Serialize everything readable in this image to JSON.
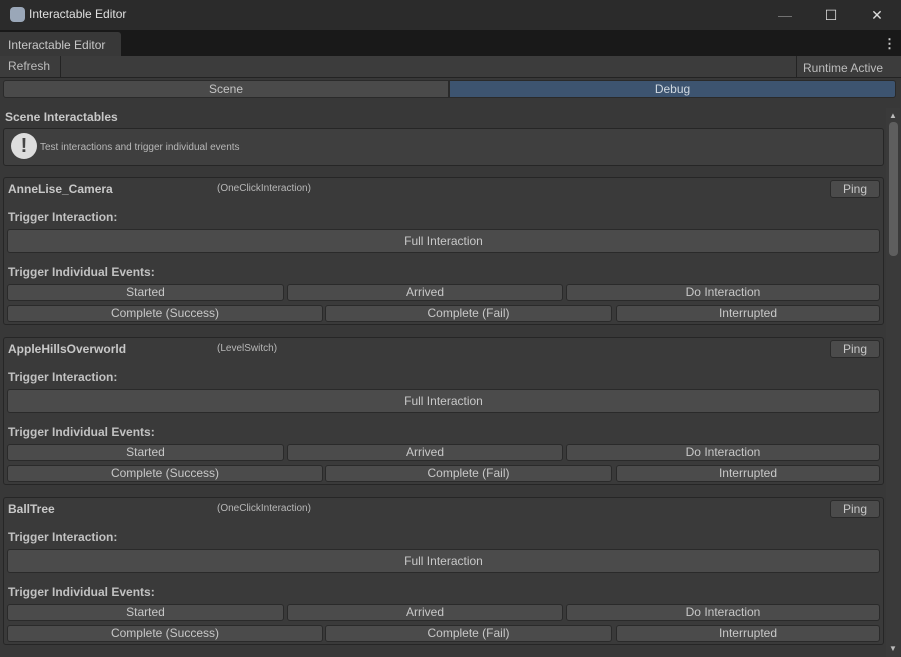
{
  "window": {
    "title": "Interactable Editor",
    "icons": [
      "app-icon",
      "minimize-icon",
      "maximize-icon",
      "close-icon"
    ]
  },
  "tab": {
    "label": "Interactable Editor"
  },
  "toolbar": {
    "refresh": "Refresh",
    "status": "Runtime Active"
  },
  "segments": {
    "scene": "Scene",
    "debug": "Debug",
    "active": "Debug"
  },
  "section": {
    "title": "Scene Interactables",
    "help": "Test interactions and trigger individual events"
  },
  "labels": {
    "trigger": "Trigger Interaction:",
    "events": "Trigger Individual Events:",
    "ping": "Ping",
    "full": "Full Interaction",
    "started": "Started",
    "arrived": "Arrived",
    "do": "Do Interaction",
    "success": "Complete (Success)",
    "fail": "Complete (Fail)",
    "interrupted": "Interrupted"
  },
  "interactables": [
    {
      "name": "AnneLise_Camera",
      "type": "(OneClickInteraction)"
    },
    {
      "name": "AppleHillsOverworld",
      "type": "(LevelSwitch)"
    },
    {
      "name": "BallTree",
      "type": "(OneClickInteraction)"
    }
  ],
  "colors": {
    "accent": "#3d5470",
    "background": "#383838"
  }
}
